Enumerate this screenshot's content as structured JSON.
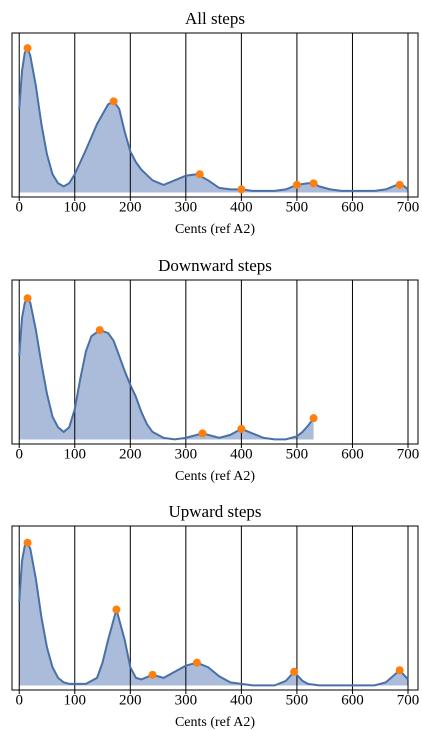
{
  "chart_data": [
    {
      "type": "area",
      "title": "All steps",
      "xlabel": "Cents (ref A2)",
      "x": [
        0,
        5,
        10,
        15,
        20,
        30,
        40,
        50,
        60,
        70,
        80,
        90,
        100,
        120,
        140,
        160,
        170,
        180,
        190,
        200,
        210,
        220,
        240,
        260,
        280,
        300,
        320,
        340,
        360,
        380,
        400,
        420,
        440,
        460,
        480,
        500,
        520,
        530,
        540,
        560,
        580,
        600,
        620,
        640,
        660,
        680,
        690,
        700
      ],
      "values": [
        0.55,
        0.8,
        0.92,
        0.95,
        0.9,
        0.7,
        0.45,
        0.25,
        0.12,
        0.06,
        0.04,
        0.06,
        0.12,
        0.28,
        0.45,
        0.58,
        0.6,
        0.55,
        0.4,
        0.27,
        0.2,
        0.15,
        0.08,
        0.05,
        0.08,
        0.11,
        0.12,
        0.08,
        0.03,
        0.02,
        0.02,
        0.01,
        0.01,
        0.01,
        0.02,
        0.05,
        0.06,
        0.06,
        0.04,
        0.02,
        0.01,
        0.01,
        0.01,
        0.01,
        0.02,
        0.05,
        0.05,
        0.02
      ],
      "color": "#4a70a8",
      "fill": "#aabcda",
      "peak_x": [
        15,
        170,
        325,
        400,
        500,
        530,
        685
      ],
      "peak_values": [
        0.95,
        0.6,
        0.12,
        0.02,
        0.05,
        0.06,
        0.05
      ],
      "peak_color": "#ff7f0e",
      "xlim": [
        -13,
        718
      ],
      "xticks": [
        0,
        100,
        200,
        300,
        400,
        500,
        600,
        700
      ],
      "ylim": [
        -0.03,
        1.05
      ],
      "grid": true
    },
    {
      "type": "area",
      "title": "Downward steps",
      "xlabel": "Cents (ref A2)",
      "x": [
        0,
        5,
        10,
        15,
        20,
        30,
        40,
        50,
        60,
        70,
        80,
        90,
        100,
        110,
        120,
        130,
        145,
        160,
        170,
        180,
        190,
        200,
        210,
        220,
        230,
        240,
        260,
        280,
        300,
        320,
        330,
        340,
        360,
        380,
        400,
        420,
        440,
        460,
        480,
        500,
        510,
        520,
        530
      ],
      "values": [
        0.55,
        0.8,
        0.9,
        0.93,
        0.9,
        0.72,
        0.5,
        0.3,
        0.15,
        0.08,
        0.05,
        0.08,
        0.2,
        0.4,
        0.58,
        0.68,
        0.72,
        0.7,
        0.65,
        0.55,
        0.45,
        0.36,
        0.28,
        0.18,
        0.1,
        0.05,
        0.01,
        0.0,
        0.01,
        0.03,
        0.04,
        0.03,
        0.01,
        0.03,
        0.07,
        0.04,
        0.01,
        0.0,
        0.0,
        0.02,
        0.05,
        0.09,
        0.14
      ],
      "color": "#4a70a8",
      "fill": "#aabcda",
      "peak_x": [
        15,
        145,
        330,
        400,
        530
      ],
      "peak_values": [
        0.93,
        0.72,
        0.04,
        0.07,
        0.14
      ],
      "peak_color": "#ff7f0e",
      "xlim": [
        -13,
        718
      ],
      "xticks": [
        0,
        100,
        200,
        300,
        400,
        500,
        600,
        700
      ],
      "ylim": [
        -0.03,
        1.05
      ],
      "grid": true
    },
    {
      "type": "area",
      "title": "Upward steps",
      "xlabel": "Cents (ref A2)",
      "x": [
        0,
        5,
        10,
        15,
        20,
        30,
        40,
        50,
        60,
        70,
        80,
        90,
        100,
        120,
        140,
        150,
        160,
        175,
        190,
        200,
        210,
        220,
        240,
        260,
        280,
        300,
        320,
        340,
        360,
        380,
        400,
        420,
        440,
        460,
        480,
        495,
        510,
        520,
        540,
        560,
        580,
        600,
        620,
        640,
        660,
        685,
        700
      ],
      "values": [
        0.55,
        0.82,
        0.92,
        0.94,
        0.9,
        0.7,
        0.45,
        0.25,
        0.12,
        0.05,
        0.02,
        0.01,
        0.01,
        0.01,
        0.05,
        0.15,
        0.3,
        0.5,
        0.3,
        0.12,
        0.05,
        0.04,
        0.07,
        0.05,
        0.09,
        0.13,
        0.15,
        0.12,
        0.06,
        0.02,
        0.01,
        0.0,
        0.0,
        0.0,
        0.03,
        0.09,
        0.03,
        0.01,
        0.0,
        0.0,
        0.0,
        0.0,
        0.0,
        0.0,
        0.02,
        0.1,
        0.04
      ],
      "color": "#4a70a8",
      "fill": "#aabcda",
      "peak_x": [
        15,
        175,
        240,
        320,
        495,
        685
      ],
      "peak_values": [
        0.94,
        0.5,
        0.07,
        0.15,
        0.09,
        0.1
      ],
      "peak_color": "#ff7f0e",
      "xlim": [
        -13,
        718
      ],
      "xticks": [
        0,
        100,
        200,
        300,
        400,
        500,
        600,
        700
      ],
      "ylim": [
        -0.03,
        1.05
      ],
      "grid": true
    }
  ]
}
